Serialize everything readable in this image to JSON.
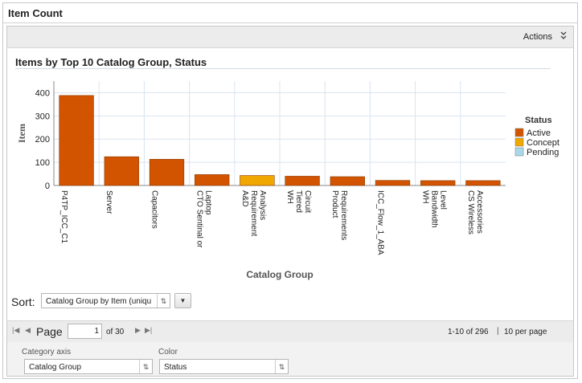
{
  "window": {
    "title": "Item Count"
  },
  "actions": {
    "label": "Actions"
  },
  "chart_data": {
    "type": "bar",
    "title": "Items by Top 10 Catalog Group, Status",
    "xlabel": "Catalog Group",
    "ylabel": "Item",
    "ylim": [
      0,
      450
    ],
    "yticks": [
      0,
      100,
      200,
      300,
      400
    ],
    "grid": true,
    "legend_position": "right",
    "legend_title": "Status",
    "series_colors": {
      "Active": "#d35400",
      "Concept": "#f0a800",
      "Pending": "#a8d8ea"
    },
    "series_order": [
      "Active",
      "Concept",
      "Pending"
    ],
    "categories": [
      {
        "lines": [
          "P4TP_ICC_C1"
        ],
        "value": 388,
        "status": "Active"
      },
      {
        "lines": [
          "Server"
        ],
        "value": 124,
        "status": "Active"
      },
      {
        "lines": [
          "Capacitors"
        ],
        "value": 113,
        "status": "Active"
      },
      {
        "lines": [
          "CTO Sentinal or",
          "Laptop"
        ],
        "value": 47,
        "status": "Active"
      },
      {
        "lines": [
          "A&D",
          "Requirement",
          "Analysis"
        ],
        "value": 43,
        "status": "Concept"
      },
      {
        "lines": [
          "WH",
          "Tiered",
          "Circuit"
        ],
        "value": 40,
        "status": "Active"
      },
      {
        "lines": [
          "Product",
          "Requirements"
        ],
        "value": 38,
        "status": "Active"
      },
      {
        "lines": [
          "ICC_Flow_1_ABA"
        ],
        "value": 22,
        "status": "Active"
      },
      {
        "lines": [
          "WH",
          "Bandwidth",
          "Level"
        ],
        "value": 21,
        "status": "Active"
      },
      {
        "lines": [
          "CS Wireless",
          "Accessories"
        ],
        "value": 21,
        "status": "Active"
      }
    ]
  },
  "sort": {
    "label": "Sort:",
    "value": "Catalog Group by Item (uniqu",
    "arrow": "⇅",
    "button_icon": "▼"
  },
  "pager": {
    "first": "|◀",
    "prev": "◀",
    "page_label": "Page",
    "page_value": "1",
    "of_label": "of 30",
    "next": "▶",
    "last": "▶|",
    "range": "1-10 of 296",
    "separator": "|",
    "per_page": "10 per page"
  },
  "settings": {
    "category_axis_label": "Category axis",
    "category_axis_value": "Catalog Group",
    "color_label": "Color",
    "color_value": "Status",
    "arrow": "⇅"
  }
}
